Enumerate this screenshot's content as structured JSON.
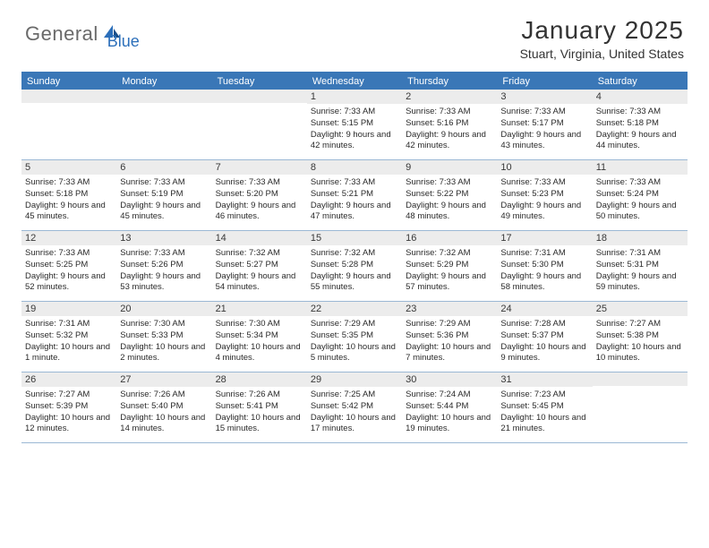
{
  "logo": {
    "text_gray": "General",
    "text_blue": "Blue"
  },
  "header": {
    "month_title": "January 2025",
    "location": "Stuart, Virginia, United States"
  },
  "colors": {
    "header_blue": "#3a77b7",
    "row_border": "#9bb8d4",
    "daynum_bg": "#ececec",
    "logo_gray": "#6a6a6a",
    "logo_blue": "#2c6fba"
  },
  "weekdays": [
    "Sunday",
    "Monday",
    "Tuesday",
    "Wednesday",
    "Thursday",
    "Friday",
    "Saturday"
  ],
  "weeks": [
    [
      null,
      null,
      null,
      {
        "n": "1",
        "sr": "7:33 AM",
        "ss": "5:15 PM",
        "dl": "9 hours and 42 minutes."
      },
      {
        "n": "2",
        "sr": "7:33 AM",
        "ss": "5:16 PM",
        "dl": "9 hours and 42 minutes."
      },
      {
        "n": "3",
        "sr": "7:33 AM",
        "ss": "5:17 PM",
        "dl": "9 hours and 43 minutes."
      },
      {
        "n": "4",
        "sr": "7:33 AM",
        "ss": "5:18 PM",
        "dl": "9 hours and 44 minutes."
      }
    ],
    [
      {
        "n": "5",
        "sr": "7:33 AM",
        "ss": "5:18 PM",
        "dl": "9 hours and 45 minutes."
      },
      {
        "n": "6",
        "sr": "7:33 AM",
        "ss": "5:19 PM",
        "dl": "9 hours and 45 minutes."
      },
      {
        "n": "7",
        "sr": "7:33 AM",
        "ss": "5:20 PM",
        "dl": "9 hours and 46 minutes."
      },
      {
        "n": "8",
        "sr": "7:33 AM",
        "ss": "5:21 PM",
        "dl": "9 hours and 47 minutes."
      },
      {
        "n": "9",
        "sr": "7:33 AM",
        "ss": "5:22 PM",
        "dl": "9 hours and 48 minutes."
      },
      {
        "n": "10",
        "sr": "7:33 AM",
        "ss": "5:23 PM",
        "dl": "9 hours and 49 minutes."
      },
      {
        "n": "11",
        "sr": "7:33 AM",
        "ss": "5:24 PM",
        "dl": "9 hours and 50 minutes."
      }
    ],
    [
      {
        "n": "12",
        "sr": "7:33 AM",
        "ss": "5:25 PM",
        "dl": "9 hours and 52 minutes."
      },
      {
        "n": "13",
        "sr": "7:33 AM",
        "ss": "5:26 PM",
        "dl": "9 hours and 53 minutes."
      },
      {
        "n": "14",
        "sr": "7:32 AM",
        "ss": "5:27 PM",
        "dl": "9 hours and 54 minutes."
      },
      {
        "n": "15",
        "sr": "7:32 AM",
        "ss": "5:28 PM",
        "dl": "9 hours and 55 minutes."
      },
      {
        "n": "16",
        "sr": "7:32 AM",
        "ss": "5:29 PM",
        "dl": "9 hours and 57 minutes."
      },
      {
        "n": "17",
        "sr": "7:31 AM",
        "ss": "5:30 PM",
        "dl": "9 hours and 58 minutes."
      },
      {
        "n": "18",
        "sr": "7:31 AM",
        "ss": "5:31 PM",
        "dl": "9 hours and 59 minutes."
      }
    ],
    [
      {
        "n": "19",
        "sr": "7:31 AM",
        "ss": "5:32 PM",
        "dl": "10 hours and 1 minute."
      },
      {
        "n": "20",
        "sr": "7:30 AM",
        "ss": "5:33 PM",
        "dl": "10 hours and 2 minutes."
      },
      {
        "n": "21",
        "sr": "7:30 AM",
        "ss": "5:34 PM",
        "dl": "10 hours and 4 minutes."
      },
      {
        "n": "22",
        "sr": "7:29 AM",
        "ss": "5:35 PM",
        "dl": "10 hours and 5 minutes."
      },
      {
        "n": "23",
        "sr": "7:29 AM",
        "ss": "5:36 PM",
        "dl": "10 hours and 7 minutes."
      },
      {
        "n": "24",
        "sr": "7:28 AM",
        "ss": "5:37 PM",
        "dl": "10 hours and 9 minutes."
      },
      {
        "n": "25",
        "sr": "7:27 AM",
        "ss": "5:38 PM",
        "dl": "10 hours and 10 minutes."
      }
    ],
    [
      {
        "n": "26",
        "sr": "7:27 AM",
        "ss": "5:39 PM",
        "dl": "10 hours and 12 minutes."
      },
      {
        "n": "27",
        "sr": "7:26 AM",
        "ss": "5:40 PM",
        "dl": "10 hours and 14 minutes."
      },
      {
        "n": "28",
        "sr": "7:26 AM",
        "ss": "5:41 PM",
        "dl": "10 hours and 15 minutes."
      },
      {
        "n": "29",
        "sr": "7:25 AM",
        "ss": "5:42 PM",
        "dl": "10 hours and 17 minutes."
      },
      {
        "n": "30",
        "sr": "7:24 AM",
        "ss": "5:44 PM",
        "dl": "10 hours and 19 minutes."
      },
      {
        "n": "31",
        "sr": "7:23 AM",
        "ss": "5:45 PM",
        "dl": "10 hours and 21 minutes."
      },
      null
    ]
  ]
}
